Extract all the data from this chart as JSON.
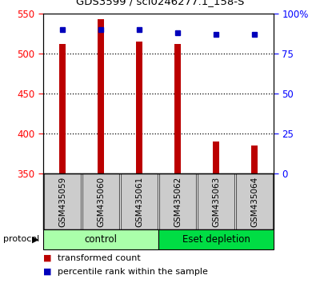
{
  "title": "GDS3599 / scl0246277.1_158-S",
  "samples": [
    "GSM435059",
    "GSM435060",
    "GSM435061",
    "GSM435062",
    "GSM435063",
    "GSM435064"
  ],
  "transformed_counts": [
    512,
    543,
    515,
    512,
    390,
    385
  ],
  "percentile_ranks": [
    90,
    90,
    90,
    88,
    87,
    87
  ],
  "ylim_left": [
    350,
    550
  ],
  "ylim_right": [
    0,
    100
  ],
  "yticks_left": [
    350,
    400,
    450,
    500,
    550
  ],
  "yticks_right": [
    0,
    25,
    50,
    75,
    100
  ],
  "ytick_labels_right": [
    "0",
    "25",
    "50",
    "75",
    "100%"
  ],
  "bar_color": "#bb0000",
  "marker_color": "#0000bb",
  "groups": [
    {
      "label": "control",
      "indices": [
        0,
        1,
        2
      ],
      "color": "#aaffaa"
    },
    {
      "label": "Eset depletion",
      "indices": [
        3,
        4,
        5
      ],
      "color": "#00dd44"
    }
  ],
  "legend_items": [
    {
      "label": "transformed count",
      "color": "#bb0000"
    },
    {
      "label": "percentile rank within the sample",
      "color": "#0000bb"
    }
  ],
  "label_area_bg": "#cccccc",
  "bar_width": 0.15
}
